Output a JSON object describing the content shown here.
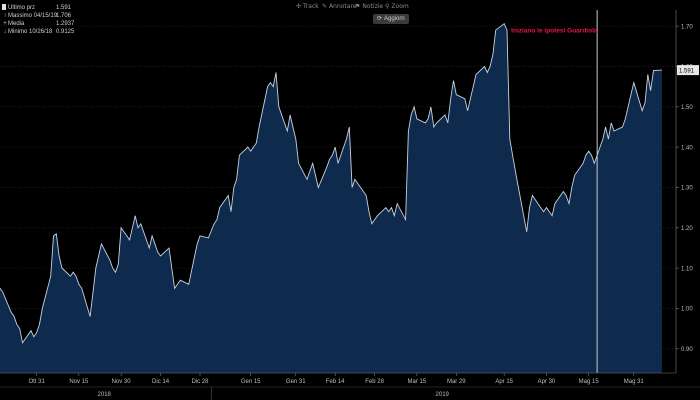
{
  "toolbar": {
    "track_label": "Track",
    "annotate_label": "Annotare",
    "news_label": "Notizie",
    "zoom_label": "Zoom",
    "refresh_label": "Aggiorn"
  },
  "legend": {
    "rows": [
      {
        "label": "Ultimo prz",
        "value": "1.591"
      },
      {
        "label": "Massimo 04/15/19",
        "value": "1.706"
      },
      {
        "label": "Media",
        "value": "1.2937"
      },
      {
        "label": "Minimo 10/26/18",
        "value": "0.9125"
      }
    ]
  },
  "chart_data": {
    "type": "area",
    "title": "",
    "xlabel": "",
    "ylabel": "",
    "annotation": {
      "text": "Iniziano le ipotesi Guardiola",
      "color": "#e8174a"
    },
    "last_value_label": "1.591",
    "ylim": [
      0.84,
      1.74
    ],
    "yticks": [
      0.9,
      1.0,
      1.1,
      1.2,
      1.3,
      1.4,
      1.5,
      1.6,
      1.7
    ],
    "ytick_labels": [
      "0.90",
      "1.00",
      "1.10",
      "1.20",
      "1.30",
      "1.40",
      "1.50",
      "1.60",
      "1.70"
    ],
    "xlim": [
      "2018-10-18",
      "2019-06-15"
    ],
    "xticks": [
      {
        "date": "2018-10-31",
        "label": "Ott 31"
      },
      {
        "date": "2018-11-15",
        "label": "Nov 15"
      },
      {
        "date": "2018-11-30",
        "label": "Nov 30"
      },
      {
        "date": "2018-12-14",
        "label": "Dic 14"
      },
      {
        "date": "2018-12-28",
        "label": "Dic 28"
      },
      {
        "date": "2019-01-15",
        "label": "Gen 15"
      },
      {
        "date": "2019-01-31",
        "label": "Gen 31"
      },
      {
        "date": "2019-02-14",
        "label": "Feb 14"
      },
      {
        "date": "2019-02-28",
        "label": "Feb 28"
      },
      {
        "date": "2019-03-15",
        "label": "Mar 15"
      },
      {
        "date": "2019-03-29",
        "label": "Mar 29"
      },
      {
        "date": "2019-04-15",
        "label": "Apr 15"
      },
      {
        "date": "2019-04-30",
        "label": "Apr 30"
      },
      {
        "date": "2019-05-15",
        "label": "Mag 15"
      },
      {
        "date": "2019-05-31",
        "label": "Mag 31"
      }
    ],
    "years": [
      {
        "date": "2018-11-24",
        "label": "2018"
      },
      {
        "date": "2019-03-24",
        "label": "2019"
      }
    ],
    "year_divider": "2019-01-01",
    "marker_line": "2019-05-18",
    "colors": {
      "line": "#c8d2e0",
      "fill": "#0e2a4d",
      "marker": "#c8c8c8"
    },
    "series": [
      {
        "points": [
          [
            "2018-10-18",
            1.05
          ],
          [
            "2018-10-19",
            1.04
          ],
          [
            "2018-10-22",
            0.99
          ],
          [
            "2018-10-23",
            0.98
          ],
          [
            "2018-10-24",
            0.96
          ],
          [
            "2018-10-25",
            0.95
          ],
          [
            "2018-10-26",
            0.915
          ],
          [
            "2018-10-29",
            0.945
          ],
          [
            "2018-10-30",
            0.93
          ],
          [
            "2018-10-31",
            0.94
          ],
          [
            "2018-11-01",
            0.96
          ],
          [
            "2018-11-02",
            1.0
          ],
          [
            "2018-11-05",
            1.08
          ],
          [
            "2018-11-06",
            1.18
          ],
          [
            "2018-11-07",
            1.185
          ],
          [
            "2018-11-08",
            1.13
          ],
          [
            "2018-11-09",
            1.1
          ],
          [
            "2018-11-12",
            1.08
          ],
          [
            "2018-11-13",
            1.09
          ],
          [
            "2018-11-14",
            1.08
          ],
          [
            "2018-11-15",
            1.06
          ],
          [
            "2018-11-16",
            1.05
          ],
          [
            "2018-11-19",
            0.98
          ],
          [
            "2018-11-20",
            1.04
          ],
          [
            "2018-11-21",
            1.1
          ],
          [
            "2018-11-22",
            1.13
          ],
          [
            "2018-11-23",
            1.16
          ],
          [
            "2018-11-26",
            1.12
          ],
          [
            "2018-11-27",
            1.1
          ],
          [
            "2018-11-28",
            1.09
          ],
          [
            "2018-11-29",
            1.11
          ],
          [
            "2018-11-30",
            1.2
          ],
          [
            "2018-12-03",
            1.17
          ],
          [
            "2018-12-04",
            1.2
          ],
          [
            "2018-12-05",
            1.23
          ],
          [
            "2018-12-06",
            1.2
          ],
          [
            "2018-12-07",
            1.21
          ],
          [
            "2018-12-10",
            1.15
          ],
          [
            "2018-12-11",
            1.18
          ],
          [
            "2018-12-12",
            1.16
          ],
          [
            "2018-12-13",
            1.14
          ],
          [
            "2018-12-14",
            1.13
          ],
          [
            "2018-12-17",
            1.15
          ],
          [
            "2018-12-18",
            1.1
          ],
          [
            "2018-12-19",
            1.05
          ],
          [
            "2018-12-20",
            1.06
          ],
          [
            "2018-12-21",
            1.07
          ],
          [
            "2018-12-24",
            1.06
          ],
          [
            "2018-12-27",
            1.16
          ],
          [
            "2018-12-28",
            1.18
          ],
          [
            "2018-12-31",
            1.175
          ],
          [
            "2019-01-02",
            1.21
          ],
          [
            "2019-01-03",
            1.22
          ],
          [
            "2019-01-04",
            1.25
          ],
          [
            "2019-01-07",
            1.28
          ],
          [
            "2019-01-08",
            1.24
          ],
          [
            "2019-01-09",
            1.3
          ],
          [
            "2019-01-10",
            1.32
          ],
          [
            "2019-01-11",
            1.38
          ],
          [
            "2019-01-14",
            1.4
          ],
          [
            "2019-01-15",
            1.39
          ],
          [
            "2019-01-16",
            1.4
          ],
          [
            "2019-01-17",
            1.41
          ],
          [
            "2019-01-18",
            1.45
          ],
          [
            "2019-01-21",
            1.55
          ],
          [
            "2019-01-22",
            1.56
          ],
          [
            "2019-01-23",
            1.55
          ],
          [
            "2019-01-24",
            1.585
          ],
          [
            "2019-01-25",
            1.5
          ],
          [
            "2019-01-28",
            1.44
          ],
          [
            "2019-01-29",
            1.48
          ],
          [
            "2019-01-30",
            1.45
          ],
          [
            "2019-01-31",
            1.42
          ],
          [
            "2019-02-01",
            1.36
          ],
          [
            "2019-02-04",
            1.32
          ],
          [
            "2019-02-05",
            1.34
          ],
          [
            "2019-02-06",
            1.36
          ],
          [
            "2019-02-07",
            1.33
          ],
          [
            "2019-02-08",
            1.3
          ],
          [
            "2019-02-11",
            1.35
          ],
          [
            "2019-02-12",
            1.37
          ],
          [
            "2019-02-13",
            1.38
          ],
          [
            "2019-02-14",
            1.4
          ],
          [
            "2019-02-15",
            1.36
          ],
          [
            "2019-02-18",
            1.42
          ],
          [
            "2019-02-19",
            1.45
          ],
          [
            "2019-02-20",
            1.3
          ],
          [
            "2019-02-21",
            1.32
          ],
          [
            "2019-02-22",
            1.31
          ],
          [
            "2019-02-25",
            1.28
          ],
          [
            "2019-02-26",
            1.24
          ],
          [
            "2019-02-27",
            1.21
          ],
          [
            "2019-02-28",
            1.22
          ],
          [
            "2019-03-01",
            1.23
          ],
          [
            "2019-03-04",
            1.25
          ],
          [
            "2019-03-05",
            1.24
          ],
          [
            "2019-03-06",
            1.25
          ],
          [
            "2019-03-07",
            1.23
          ],
          [
            "2019-03-08",
            1.26
          ],
          [
            "2019-03-11",
            1.22
          ],
          [
            "2019-03-12",
            1.44
          ],
          [
            "2019-03-13",
            1.48
          ],
          [
            "2019-03-14",
            1.5
          ],
          [
            "2019-03-15",
            1.47
          ],
          [
            "2019-03-18",
            1.46
          ],
          [
            "2019-03-19",
            1.47
          ],
          [
            "2019-03-20",
            1.5
          ],
          [
            "2019-03-21",
            1.45
          ],
          [
            "2019-03-22",
            1.46
          ],
          [
            "2019-03-25",
            1.48
          ],
          [
            "2019-03-26",
            1.46
          ],
          [
            "2019-03-27",
            1.52
          ],
          [
            "2019-03-28",
            1.565
          ],
          [
            "2019-03-29",
            1.53
          ],
          [
            "2019-04-01",
            1.52
          ],
          [
            "2019-04-02",
            1.49
          ],
          [
            "2019-04-03",
            1.52
          ],
          [
            "2019-04-04",
            1.55
          ],
          [
            "2019-04-05",
            1.58
          ],
          [
            "2019-04-08",
            1.6
          ],
          [
            "2019-04-09",
            1.585
          ],
          [
            "2019-04-10",
            1.6
          ],
          [
            "2019-04-11",
            1.63
          ],
          [
            "2019-04-12",
            1.69
          ],
          [
            "2019-04-15",
            1.706
          ],
          [
            "2019-04-16",
            1.69
          ],
          [
            "2019-04-17",
            1.42
          ],
          [
            "2019-04-18",
            1.38
          ],
          [
            "2019-04-19",
            1.34
          ],
          [
            "2019-04-23",
            1.19
          ],
          [
            "2019-04-24",
            1.25
          ],
          [
            "2019-04-25",
            1.28
          ],
          [
            "2019-04-26",
            1.27
          ],
          [
            "2019-04-29",
            1.24
          ],
          [
            "2019-04-30",
            1.25
          ],
          [
            "2019-05-02",
            1.23
          ],
          [
            "2019-05-03",
            1.26
          ],
          [
            "2019-05-06",
            1.29
          ],
          [
            "2019-05-07",
            1.28
          ],
          [
            "2019-05-08",
            1.26
          ],
          [
            "2019-05-09",
            1.3
          ],
          [
            "2019-05-10",
            1.33
          ],
          [
            "2019-05-13",
            1.36
          ],
          [
            "2019-05-14",
            1.38
          ],
          [
            "2019-05-15",
            1.39
          ],
          [
            "2019-05-16",
            1.38
          ],
          [
            "2019-05-17",
            1.36
          ],
          [
            "2019-05-20",
            1.42
          ],
          [
            "2019-05-21",
            1.45
          ],
          [
            "2019-05-22",
            1.42
          ],
          [
            "2019-05-23",
            1.46
          ],
          [
            "2019-05-24",
            1.44
          ],
          [
            "2019-05-27",
            1.45
          ],
          [
            "2019-05-28",
            1.47
          ],
          [
            "2019-05-29",
            1.5
          ],
          [
            "2019-05-30",
            1.53
          ],
          [
            "2019-05-31",
            1.56
          ],
          [
            "2019-06-03",
            1.49
          ],
          [
            "2019-06-04",
            1.51
          ],
          [
            "2019-06-05",
            1.58
          ],
          [
            "2019-06-06",
            1.54
          ],
          [
            "2019-06-07",
            1.59
          ],
          [
            "2019-06-10",
            1.591
          ]
        ]
      }
    ]
  }
}
